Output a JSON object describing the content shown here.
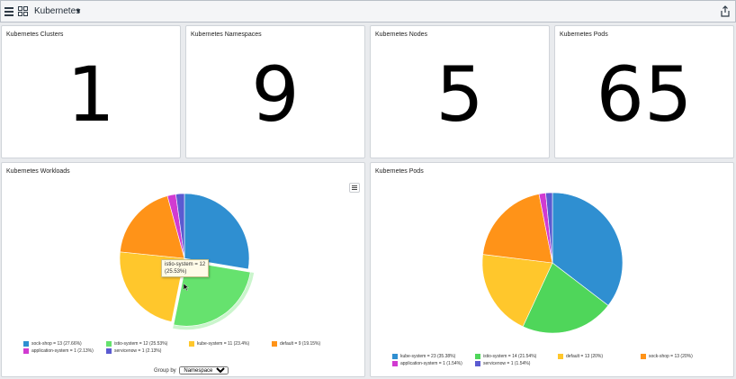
{
  "topbar": {
    "title": "Kubernetes"
  },
  "stats": [
    {
      "label": "Kubernetes Clusters",
      "value": "1"
    },
    {
      "label": "Kubernetes Namespaces",
      "value": "9"
    },
    {
      "label": "Kubernetes Nodes",
      "value": "5"
    },
    {
      "label": "Kubernetes Pods",
      "value": "65"
    }
  ],
  "workloads": {
    "title": "Kubernetes Workloads",
    "tooltip_line1": "istio-system = 12",
    "tooltip_line2": "(25.53%)",
    "group_by_label": "Group by",
    "group_by_value": "Namespace"
  },
  "pods": {
    "title": "Kubernetes Pods"
  },
  "chart_data": [
    {
      "type": "pie",
      "categories": [
        "sock-shop",
        "istio-system",
        "kube-system",
        "default",
        "application-system",
        "servicenow"
      ],
      "values": [
        13,
        12,
        11,
        9,
        1,
        1
      ],
      "colors": [
        "#2f8fd1",
        "#66e26e",
        "#ffc72c",
        "#ff9318",
        "#d13bd1",
        "#5b5bd1"
      ],
      "legend": [
        "sock-shop = 13 (27.66%)",
        "istio-system = 12 (25.53%)",
        "kube-system = 11 (23.4%)",
        "default = 9 (19.15%)",
        "application-system = 1 (2.13%)",
        "servicenow = 1 (2.13%)"
      ],
      "highlighted": "istio-system"
    },
    {
      "type": "pie",
      "categories": [
        "kube-system",
        "istio-system",
        "default",
        "sock-shop",
        "application-system",
        "servicenow"
      ],
      "values": [
        23,
        14,
        13,
        13,
        1,
        1
      ],
      "colors": [
        "#2f8fd1",
        "#4fd65a",
        "#ffc72c",
        "#ff9318",
        "#d13bd1",
        "#5b5bd1"
      ],
      "legend": [
        "kube-system = 23 (35.38%)",
        "istio-system = 14 (21.54%)",
        "default = 13 (20%)",
        "sock-shop = 13 (20%)",
        "application-system = 1 (1.54%)",
        "servicenow = 1 (1.54%)"
      ]
    }
  ]
}
